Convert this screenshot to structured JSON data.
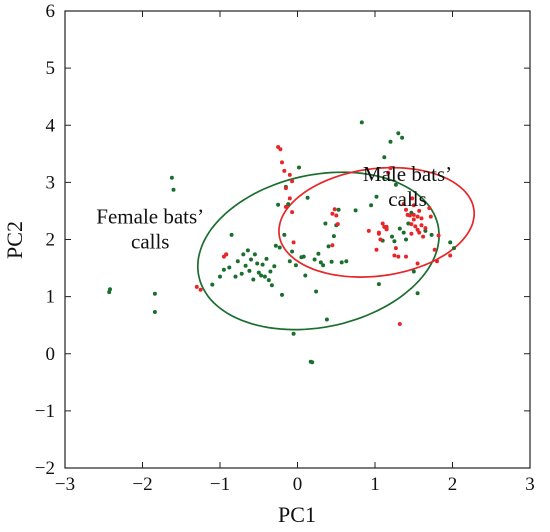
{
  "chart_data": {
    "type": "scatter",
    "xlabel": "PC1",
    "ylabel": "PC2",
    "xlim": [
      -3,
      3
    ],
    "ylim": [
      -2,
      6
    ],
    "xticks": [
      -3,
      -2,
      -1,
      0,
      1,
      2,
      3
    ],
    "yticks": [
      -2,
      -1,
      0,
      1,
      2,
      3,
      4,
      5,
      6
    ],
    "xtick_labels": [
      "−3",
      "−2",
      "−1",
      "0",
      "1",
      "2",
      "3"
    ],
    "ytick_labels": [
      "−2",
      "−1",
      "0",
      "1",
      "2",
      "3",
      "4",
      "5",
      "6"
    ],
    "grid": false,
    "annotations": [
      {
        "lines": [
          "Female bats’",
          "calls"
        ],
        "x": -1.9,
        "y": 2.28,
        "series": "female"
      },
      {
        "lines": [
          "Male bats’",
          "calls"
        ],
        "x": 1.42,
        "y": 3.02,
        "series": "male"
      }
    ],
    "series": [
      {
        "key": "female",
        "color": "#1a6e2e",
        "points": [
          [
            -2.43,
            1.08
          ],
          [
            -2.42,
            1.13
          ],
          [
            -1.84,
            1.05
          ],
          [
            -1.84,
            0.73
          ],
          [
            -1.62,
            3.08
          ],
          [
            -1.6,
            2.87
          ],
          [
            -1.1,
            1.21
          ],
          [
            -1.0,
            1.35
          ],
          [
            -0.95,
            1.47
          ],
          [
            -0.92,
            1.74
          ],
          [
            -0.88,
            1.51
          ],
          [
            -0.85,
            2.08
          ],
          [
            -0.8,
            1.35
          ],
          [
            -0.77,
            1.62
          ],
          [
            -0.72,
            1.4
          ],
          [
            -0.7,
            1.74
          ],
          [
            -0.67,
            1.54
          ],
          [
            -0.64,
            1.81
          ],
          [
            -0.62,
            1.45
          ],
          [
            -0.6,
            1.65
          ],
          [
            -0.57,
            1.3
          ],
          [
            -0.55,
            1.74
          ],
          [
            -0.52,
            1.58
          ],
          [
            -0.5,
            1.42
          ],
          [
            -0.47,
            1.37
          ],
          [
            -0.45,
            1.56
          ],
          [
            -0.42,
            1.35
          ],
          [
            -0.4,
            1.66
          ],
          [
            -0.37,
            1.29
          ],
          [
            -0.35,
            1.44
          ],
          [
            -0.33,
            1.2
          ],
          [
            -0.3,
            1.53
          ],
          [
            -0.28,
            1.89
          ],
          [
            -0.25,
            2.61
          ],
          [
            -0.23,
            1.86
          ],
          [
            -0.2,
            1.03
          ],
          [
            -0.17,
            2.08
          ],
          [
            -0.15,
            2.92
          ],
          [
            -0.12,
            2.62
          ],
          [
            -0.1,
            1.62
          ],
          [
            -0.07,
            1.79
          ],
          [
            -0.05,
            0.35
          ],
          [
            -0.02,
            1.55
          ],
          [
            0.02,
            3.26
          ],
          [
            0.05,
            1.69
          ],
          [
            0.08,
            1.7
          ],
          [
            0.1,
            1.37
          ],
          [
            0.13,
            2.73
          ],
          [
            0.17,
            -0.14
          ],
          [
            0.19,
            -0.15
          ],
          [
            0.22,
            1.65
          ],
          [
            0.24,
            1.09
          ],
          [
            0.27,
            1.75
          ],
          [
            0.3,
            1.6
          ],
          [
            0.33,
            1.55
          ],
          [
            0.36,
            2.28
          ],
          [
            0.38,
            0.6
          ],
          [
            0.4,
            1.88
          ],
          [
            0.44,
            1.61
          ],
          [
            0.47,
            2.06
          ],
          [
            0.5,
            2.25
          ],
          [
            0.53,
            2.52
          ],
          [
            0.57,
            1.6
          ],
          [
            0.63,
            1.62
          ],
          [
            0.75,
            2.51
          ],
          [
            0.83,
            4.05
          ],
          [
            0.95,
            2.6
          ],
          [
            1.02,
            2.75
          ],
          [
            1.05,
            1.22
          ],
          [
            1.1,
            1.98
          ],
          [
            1.12,
            3.44
          ],
          [
            1.15,
            2.18
          ],
          [
            1.2,
            3.71
          ],
          [
            1.22,
            2.05
          ],
          [
            1.25,
            1.97
          ],
          [
            1.27,
            2.96
          ],
          [
            1.3,
            3.86
          ],
          [
            1.32,
            2.19
          ],
          [
            1.35,
            3.78
          ],
          [
            1.37,
            2.12
          ],
          [
            1.4,
            2.0
          ],
          [
            1.43,
            2.28
          ],
          [
            1.47,
            2.47
          ],
          [
            1.5,
            1.44
          ],
          [
            1.55,
            1.06
          ],
          [
            1.65,
            2.15
          ],
          [
            1.73,
            2.08
          ],
          [
            1.97,
            1.95
          ],
          [
            2.02,
            1.85
          ]
        ]
      },
      {
        "key": "male",
        "color": "#e8262a",
        "points": [
          [
            -1.3,
            1.17
          ],
          [
            -1.25,
            1.12
          ],
          [
            -0.95,
            1.7
          ],
          [
            -0.92,
            1.74
          ],
          [
            -0.25,
            3.62
          ],
          [
            -0.22,
            3.58
          ],
          [
            -0.2,
            3.35
          ],
          [
            -0.17,
            3.2
          ],
          [
            -0.15,
            2.9
          ],
          [
            -0.1,
            3.13
          ],
          [
            -0.07,
            3.02
          ],
          [
            -0.15,
            2.57
          ],
          [
            -0.1,
            2.72
          ],
          [
            -0.05,
            1.95
          ],
          [
            -0.07,
            2.48
          ],
          [
            0.45,
            2.45
          ],
          [
            0.48,
            2.53
          ],
          [
            0.5,
            2.42
          ],
          [
            0.52,
            2.27
          ],
          [
            0.45,
            1.9
          ],
          [
            1.02,
            1.82
          ],
          [
            1.05,
            2.12
          ],
          [
            1.07,
            2.0
          ],
          [
            1.1,
            2.28
          ],
          [
            1.12,
            2.22
          ],
          [
            1.15,
            2.18
          ],
          [
            1.17,
            3.17
          ],
          [
            1.2,
            3.25
          ],
          [
            1.05,
            2.1
          ],
          [
            1.25,
            1.72
          ],
          [
            1.27,
            1.85
          ],
          [
            1.3,
            1.7
          ],
          [
            1.32,
            0.52
          ],
          [
            1.37,
            2.62
          ],
          [
            1.4,
            2.52
          ],
          [
            1.42,
            2.43
          ],
          [
            1.45,
            2.42
          ],
          [
            1.47,
            2.27
          ],
          [
            1.47,
            2.1
          ],
          [
            1.5,
            2.43
          ],
          [
            1.5,
            2.35
          ],
          [
            1.52,
            2.23
          ],
          [
            1.55,
            2.4
          ],
          [
            1.55,
            2.17
          ],
          [
            1.57,
            2.5
          ],
          [
            1.57,
            2.12
          ],
          [
            1.6,
            2.37
          ],
          [
            1.6,
            2.25
          ],
          [
            1.62,
            2.05
          ],
          [
            1.65,
            2.2
          ],
          [
            1.48,
            2.72
          ],
          [
            1.5,
            2.6
          ],
          [
            1.7,
            2.55
          ],
          [
            1.72,
            2.4
          ],
          [
            1.4,
            1.7
          ],
          [
            1.55,
            1.58
          ],
          [
            1.8,
            1.62
          ],
          [
            1.77,
            1.82
          ],
          [
            1.97,
            1.72
          ],
          [
            1.82,
            2.07
          ],
          [
            1.15,
            2.22
          ],
          [
            0.92,
            2.15
          ]
        ]
      }
    ],
    "ellipses": [
      {
        "series": "female",
        "color": "#1a6e2e",
        "cx": 0.27,
        "cy": 1.8,
        "rx": 1.63,
        "ry": 1.29,
        "angle_deg": 29
      },
      {
        "series": "male",
        "color": "#e8262a",
        "cx": 1.02,
        "cy": 2.3,
        "rx": 1.28,
        "ry": 0.93,
        "angle_deg": 15
      }
    ]
  }
}
